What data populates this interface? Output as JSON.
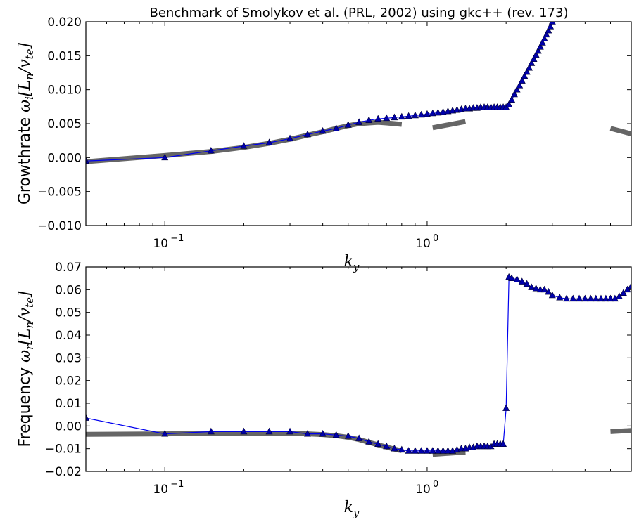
{
  "title": "Benchmark of Smolykov et al. (PRL, 2002)  using gkc++ (rev. 173)",
  "colors": {
    "series": "#0000ee",
    "marker": "#0000aa",
    "reference": "#666666"
  },
  "chart_data": [
    {
      "type": "line",
      "name": "growthrate",
      "title": "Benchmark of Smolykov et al. (PRL, 2002)  using gkc++ (rev. 173)",
      "ylabel_text": "Growthrate",
      "ylabel_math": "ω_i[L_n/v_te]",
      "xlabel": "k_y",
      "xscale": "log",
      "xlim": [
        0.05,
        6.0
      ],
      "ylim": [
        -0.01,
        0.02
      ],
      "yticks": [
        "0.020",
        "0.015",
        "0.010",
        "0.005",
        "0.000",
        "−0.005",
        "−0.010"
      ],
      "ytick_values": [
        0.02,
        0.015,
        0.01,
        0.005,
        0.0,
        -0.005,
        -0.01
      ],
      "xticks": [
        {
          "value": 0.1,
          "base": "10",
          "exp": "−1"
        },
        {
          "value": 1.0,
          "base": "10",
          "exp": "0"
        }
      ],
      "series": [
        {
          "name": "",
          "style": "triangle-markers-with-line",
          "x": [
            0.05,
            0.1,
            0.15,
            0.2,
            0.25,
            0.3,
            0.35,
            0.4,
            0.45,
            0.5,
            0.55,
            0.6,
            0.65,
            0.7,
            0.75,
            0.8,
            0.85,
            0.9,
            0.95,
            1.0,
            1.05,
            1.1,
            1.15,
            1.2,
            1.25,
            1.3,
            1.35,
            1.4,
            1.45,
            1.5,
            1.55,
            1.6,
            1.65,
            1.7,
            1.75,
            1.8,
            1.85,
            1.9,
            1.95,
            2.0,
            2.05,
            2.1,
            2.15,
            2.2,
            2.25,
            2.3,
            2.35,
            2.4,
            2.45,
            2.5,
            2.55,
            2.6,
            2.65,
            2.7,
            2.75,
            2.8,
            2.85,
            2.9,
            2.95,
            3.0
          ],
          "y": [
            -0.0005,
            0.0,
            0.001,
            0.0017,
            0.0022,
            0.0028,
            0.0034,
            0.0039,
            0.0043,
            0.0048,
            0.0052,
            0.0055,
            0.0057,
            0.0058,
            0.0059,
            0.006,
            0.0061,
            0.0062,
            0.0063,
            0.0064,
            0.0065,
            0.0066,
            0.0067,
            0.0068,
            0.0069,
            0.007,
            0.0071,
            0.0072,
            0.0072,
            0.0073,
            0.0073,
            0.0074,
            0.0074,
            0.0074,
            0.0074,
            0.0074,
            0.0074,
            0.0074,
            0.0074,
            0.0074,
            0.0078,
            0.0085,
            0.0093,
            0.01,
            0.0106,
            0.0113,
            0.012,
            0.0126,
            0.0132,
            0.0139,
            0.0145,
            0.0151,
            0.0157,
            0.0163,
            0.0169,
            0.0175,
            0.0181,
            0.0187,
            0.0193,
            0.02
          ]
        },
        {
          "name": "",
          "style": "thick-gray",
          "segments": [
            {
              "x": [
                0.05,
                0.1,
                0.15,
                0.2,
                0.25,
                0.3,
                0.35,
                0.4,
                0.45,
                0.5,
                0.55,
                0.6,
                0.65,
                0.7,
                0.75,
                0.8
              ],
              "y": [
                -0.0006,
                0.0003,
                0.0009,
                0.0015,
                0.0021,
                0.0027,
                0.0033,
                0.0038,
                0.0043,
                0.0047,
                0.005,
                0.0051,
                0.0052,
                0.0051,
                0.005,
                0.0049
              ]
            },
            {
              "x": [
                1.05,
                1.4
              ],
              "y": [
                0.0044,
                0.0053
              ]
            },
            {
              "x": [
                5.0,
                6.0
              ],
              "y": [
                0.0043,
                0.0035
              ]
            }
          ]
        }
      ]
    },
    {
      "type": "line",
      "name": "frequency",
      "ylabel_text": "Frequency",
      "ylabel_math": "ω_r[L_n/v_te]",
      "xlabel": "k_y",
      "xscale": "log",
      "xlim": [
        0.05,
        6.0
      ],
      "ylim": [
        -0.02,
        0.07
      ],
      "yticks": [
        "0.07",
        "0.06",
        "0.05",
        "0.04",
        "0.03",
        "0.02",
        "0.01",
        "0.00",
        "−0.01",
        "−0.02"
      ],
      "ytick_values": [
        0.07,
        0.06,
        0.05,
        0.04,
        0.03,
        0.02,
        0.01,
        0.0,
        -0.01,
        -0.02
      ],
      "xticks": [
        {
          "value": 0.1,
          "base": "10",
          "exp": "−1"
        },
        {
          "value": 1.0,
          "base": "10",
          "exp": "0"
        }
      ],
      "series": [
        {
          "name": "",
          "style": "triangle-markers-with-line",
          "x": [
            0.05,
            0.1,
            0.15,
            0.2,
            0.25,
            0.3,
            0.35,
            0.4,
            0.45,
            0.5,
            0.55,
            0.6,
            0.65,
            0.7,
            0.75,
            0.8,
            0.85,
            0.9,
            0.95,
            1.0,
            1.05,
            1.1,
            1.15,
            1.2,
            1.25,
            1.3,
            1.35,
            1.4,
            1.45,
            1.5,
            1.55,
            1.6,
            1.65,
            1.7,
            1.75,
            1.8,
            1.85,
            1.9,
            1.95,
            2.0,
            2.05,
            2.1,
            2.2,
            2.3,
            2.4,
            2.5,
            2.6,
            2.7,
            2.8,
            2.9,
            3.0,
            3.2,
            3.4,
            3.6,
            3.8,
            4.0,
            4.2,
            4.4,
            4.6,
            4.8,
            5.0,
            5.2,
            5.4,
            5.6,
            5.8,
            6.0
          ],
          "y": [
            0.0035,
            -0.0035,
            -0.0025,
            -0.0025,
            -0.0025,
            -0.0025,
            -0.0035,
            -0.0035,
            -0.004,
            -0.0045,
            -0.0055,
            -0.007,
            -0.008,
            -0.009,
            -0.01,
            -0.0105,
            -0.011,
            -0.011,
            -0.011,
            -0.011,
            -0.011,
            -0.011,
            -0.011,
            -0.011,
            -0.011,
            -0.0105,
            -0.01,
            -0.01,
            -0.0095,
            -0.0095,
            -0.009,
            -0.009,
            -0.009,
            -0.009,
            -0.009,
            -0.008,
            -0.008,
            -0.008,
            -0.008,
            0.0078,
            0.0655,
            0.065,
            0.0645,
            0.0635,
            0.0625,
            0.061,
            0.0605,
            0.06,
            0.06,
            0.059,
            0.0575,
            0.0565,
            0.056,
            0.056,
            0.056,
            0.056,
            0.056,
            0.056,
            0.056,
            0.056,
            0.056,
            0.056,
            0.057,
            0.0585,
            0.06,
            0.0615
          ]
        },
        {
          "name": "",
          "style": "thick-gray",
          "segments": [
            {
              "x": [
                0.05,
                0.1,
                0.15,
                0.2,
                0.25,
                0.3,
                0.35,
                0.4,
                0.45,
                0.5,
                0.55,
                0.6,
                0.65,
                0.7,
                0.75,
                0.8
              ],
              "y": [
                -0.0037,
                -0.0035,
                -0.0033,
                -0.0032,
                -0.0032,
                -0.0033,
                -0.0035,
                -0.0038,
                -0.0043,
                -0.005,
                -0.006,
                -0.0072,
                -0.0083,
                -0.0093,
                -0.0102,
                -0.0108
              ]
            },
            {
              "x": [
                1.05,
                1.4
              ],
              "y": [
                -0.0125,
                -0.0115
              ]
            },
            {
              "x": [
                5.0,
                6.0
              ],
              "y": [
                -0.0025,
                -0.002
              ]
            }
          ]
        }
      ]
    }
  ]
}
